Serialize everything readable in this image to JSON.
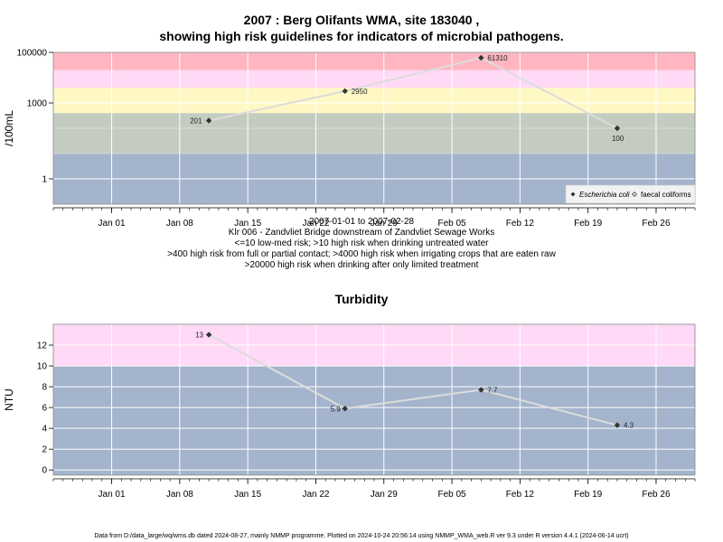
{
  "title_line1": "2007 : Berg Olifants WMA, site 183040 ,",
  "title_line2": "showing high risk guidelines for indicators of microbial pathogens.",
  "caption_lines": [
    "2007-01-01 to 2007-02-28",
    "Klr 006 - Zandvliet Bridge downstream of Zandvliet Sewage Works",
    "<=10 low-med risk; >10 high risk when drinking untreated water",
    ">400 high risk from full or partial contact; >4000 high risk when irrigating crops that are eaten raw",
    ">20000 high risk when drinking after only limited treatment"
  ],
  "footer": "Data from D:/data_large/wq/wms.db dated 2024-08-27, mainly NMMP programme. Plotted on 2024-10-24 20:56:14 using NMMP_WMA_web.R ver 9.3 under R version 4.4.1 (2024-06-14 ucrt)",
  "x_tick_labels": [
    "Jan 01",
    "Jan 08",
    "Jan 15",
    "Jan 22",
    "Jan 29",
    "Feb 05",
    "Feb 12",
    "Feb 19",
    "Feb 26"
  ],
  "colors": {
    "red_band": "#ffb6c1",
    "pink_band": "#ffd9f5",
    "yellow_band": "#fff8c4",
    "green_band": "#c4ccc0",
    "blue_band": "#a4b4cc",
    "grid": "#ffffff",
    "line": "#dcdcdc",
    "point": "#333333"
  },
  "chart_data": [
    {
      "type": "line",
      "title": "2007 : Berg Olifants WMA, site 183040 , showing high risk guidelines for indicators of microbial pathogens.",
      "ylabel": "/100mL",
      "yscale": "log",
      "ylim": [
        0.1,
        100000
      ],
      "y_tick_labels": [
        "1",
        "1000",
        "100000"
      ],
      "y_ticks": [
        1,
        1000,
        100000
      ],
      "x_ticks": [
        "2007-01-01",
        "2007-01-08",
        "2007-01-15",
        "2007-01-22",
        "2007-01-29",
        "2007-02-05",
        "2007-02-12",
        "2007-02-19",
        "2007-02-26"
      ],
      "xlim": [
        "2006-12-26",
        "2007-03-02"
      ],
      "bands": [
        {
          "from": 0.1,
          "to": 10,
          "color": "#a4b4cc"
        },
        {
          "from": 10,
          "to": 400,
          "color": "#c4ccc0"
        },
        {
          "from": 400,
          "to": 4000,
          "color": "#fff8c4"
        },
        {
          "from": 4000,
          "to": 20000,
          "color": "#ffd9f5"
        },
        {
          "from": 20000,
          "to": 100000,
          "color": "#ffb6c1"
        }
      ],
      "legend_position": "bottom-right",
      "legend": [
        "Escherichia coli",
        "faecal coliforms"
      ],
      "series": [
        {
          "name": "Escherichia coli",
          "x": [
            "2007-01-11",
            "2007-01-25",
            "2007-02-08",
            "2007-02-22"
          ],
          "y": [
            201,
            2950,
            61310,
            100
          ],
          "labels": [
            "201",
            "2950",
            "61310",
            "100"
          ]
        }
      ]
    },
    {
      "type": "line",
      "title": "Turbidity",
      "ylabel": "NTU",
      "ylim": [
        -0.5,
        14
      ],
      "y_tick_labels": [
        "0",
        "2",
        "4",
        "6",
        "8",
        "10",
        "12"
      ],
      "y_ticks": [
        0,
        2,
        4,
        6,
        8,
        10,
        12
      ],
      "x_ticks": [
        "2007-01-01",
        "2007-01-08",
        "2007-01-15",
        "2007-01-22",
        "2007-01-29",
        "2007-02-05",
        "2007-02-12",
        "2007-02-19",
        "2007-02-26"
      ],
      "xlim": [
        "2006-12-26",
        "2007-03-02"
      ],
      "bands": [
        {
          "from": -0.5,
          "to": 10,
          "color": "#a4b4cc"
        },
        {
          "from": 10,
          "to": 14,
          "color": "#ffd9f5"
        }
      ],
      "series": [
        {
          "x": [
            "2007-01-11",
            "2007-01-25",
            "2007-02-08",
            "2007-02-22"
          ],
          "y": [
            13,
            5.9,
            7.7,
            4.3
          ],
          "labels": [
            "13",
            "5.9",
            "7.7",
            "4.3"
          ]
        }
      ]
    }
  ]
}
